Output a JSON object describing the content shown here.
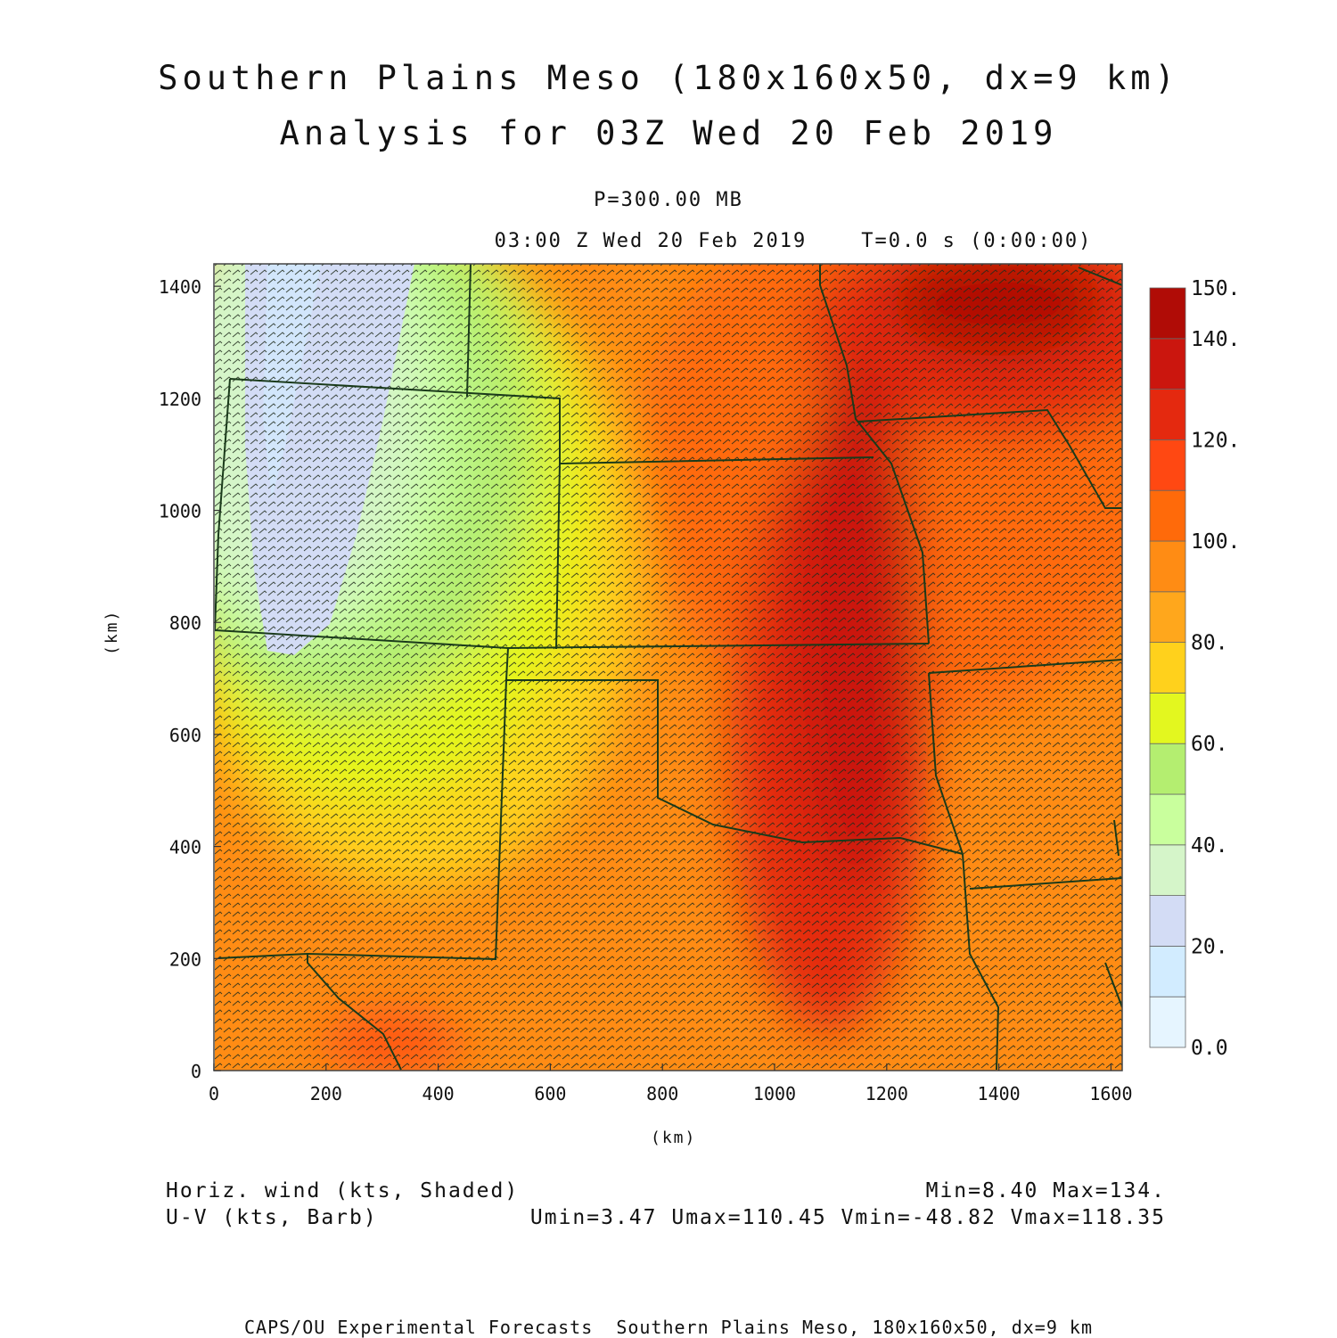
{
  "header": {
    "title_line1": "Southern Plains Meso (180x160x50, dx=9 km)",
    "title_line2": "Analysis for 03Z Wed 20 Feb 2019",
    "pressure_level": "P=300.00 MB",
    "valid_time": "03:00 Z Wed 20 Feb 2019    T=0.0 s (0:00:00)"
  },
  "axes": {
    "x_label": "(km)",
    "y_label": "(km)",
    "x_ticks": [
      "0",
      "200",
      "400",
      "600",
      "800",
      "1000",
      "1200",
      "1400",
      "1600"
    ],
    "y_ticks": [
      "0",
      "200",
      "400",
      "600",
      "800",
      "1000",
      "1200",
      "1400"
    ],
    "x_range_km": [
      0,
      1620
    ],
    "y_range_km": [
      0,
      1440
    ]
  },
  "colorbar": {
    "tick_labels": [
      "0.0",
      "20.",
      "40.",
      "60.",
      "80.",
      "100.",
      "120.",
      "140.",
      "150."
    ],
    "bins": [
      {
        "from": 0,
        "to": 10,
        "color": "#e6f5ff"
      },
      {
        "from": 10,
        "to": 20,
        "color": "#d2ecff"
      },
      {
        "from": 20,
        "to": 30,
        "color": "#d3dcf5"
      },
      {
        "from": 30,
        "to": 40,
        "color": "#d5f5c9"
      },
      {
        "from": 40,
        "to": 50,
        "color": "#c9ff9d"
      },
      {
        "from": 50,
        "to": 60,
        "color": "#b4ee70"
      },
      {
        "from": 60,
        "to": 70,
        "color": "#e3f71f"
      },
      {
        "from": 70,
        "to": 80,
        "color": "#ffd11c"
      },
      {
        "from": 80,
        "to": 90,
        "color": "#ffa71c"
      },
      {
        "from": 90,
        "to": 100,
        "color": "#ff8c14"
      },
      {
        "from": 100,
        "to": 110,
        "color": "#ff6a0a"
      },
      {
        "from": 110,
        "to": 120,
        "color": "#ff4812"
      },
      {
        "from": 120,
        "to": 130,
        "color": "#e4290f"
      },
      {
        "from": 130,
        "to": 140,
        "color": "#cb160e"
      },
      {
        "from": 140,
        "to": 150,
        "color": "#b00c06"
      }
    ]
  },
  "legend": {
    "field_shaded": "Horiz. wind (kts, Shaded)",
    "field_barb": "U-V (kts, Barb)",
    "min_max": "Min=8.40 Max=134.",
    "uv_stats": "Umin=3.47 Umax=110.45 Vmin=-48.82 Vmax=118.35"
  },
  "footer": "CAPS/OU Experimental Forecasts  Southern Plains Meso, 180x160x50, dx=9 km",
  "chart_data": {
    "type": "heatmap",
    "variable": "Horizontal wind speed (kts)",
    "x_unit": "km",
    "y_unit": "km",
    "xlim": [
      0,
      1620
    ],
    "ylim": [
      0,
      1440
    ],
    "zlim": [
      0,
      150
    ],
    "stats": {
      "min": 8.4,
      "max": 134,
      "umin": 3.47,
      "umax": 110.45,
      "vmin": -48.82,
      "vmax": 118.35
    },
    "features": [
      {
        "name": "jet core",
        "x_km": 1050,
        "y_km": 700,
        "value_kts": 130
      },
      {
        "name": "wind minimum",
        "x_km": 150,
        "y_km": 1050,
        "value_kts": 20
      }
    ]
  }
}
